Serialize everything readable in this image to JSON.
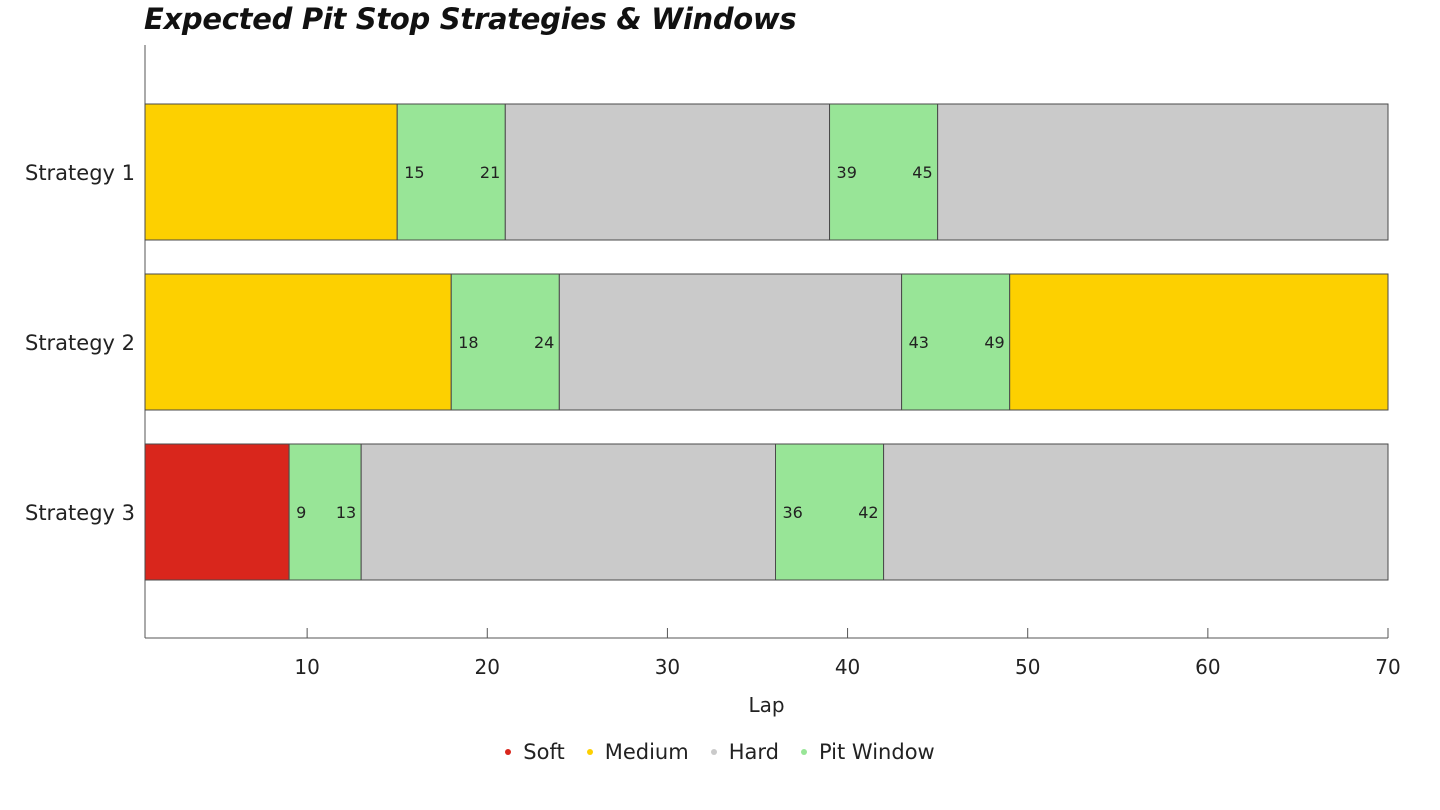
{
  "chart_data": {
    "type": "bar",
    "orientation": "horizontal-stacked",
    "title": "Expected Pit Stop Strategies & Windows",
    "xlabel": "Lap",
    "ylabel": "",
    "xlim": [
      1,
      70
    ],
    "xticks": [
      10,
      20,
      30,
      40,
      50,
      60,
      70
    ],
    "categories": [
      "Strategy 1",
      "Strategy 2",
      "Strategy 3"
    ],
    "strategies": [
      {
        "name": "Strategy 1",
        "segments": [
          {
            "compound": "Medium",
            "start": 1,
            "end": 15
          },
          {
            "compound": "Pit Window",
            "start": 15,
            "end": 21
          },
          {
            "compound": "Hard",
            "start": 21,
            "end": 39
          },
          {
            "compound": "Pit Window",
            "start": 39,
            "end": 45
          },
          {
            "compound": "Hard",
            "start": 45,
            "end": 70
          }
        ]
      },
      {
        "name": "Strategy 2",
        "segments": [
          {
            "compound": "Medium",
            "start": 1,
            "end": 18
          },
          {
            "compound": "Pit Window",
            "start": 18,
            "end": 24
          },
          {
            "compound": "Hard",
            "start": 24,
            "end": 43
          },
          {
            "compound": "Pit Window",
            "start": 43,
            "end": 49
          },
          {
            "compound": "Medium",
            "start": 49,
            "end": 70
          }
        ]
      },
      {
        "name": "Strategy 3",
        "segments": [
          {
            "compound": "Soft",
            "start": 1,
            "end": 9
          },
          {
            "compound": "Pit Window",
            "start": 9,
            "end": 13
          },
          {
            "compound": "Hard",
            "start": 13,
            "end": 36
          },
          {
            "compound": "Pit Window",
            "start": 36,
            "end": 42
          },
          {
            "compound": "Hard",
            "start": 42,
            "end": 70
          }
        ]
      }
    ],
    "legend": [
      {
        "name": "Soft",
        "color": "#d9261c"
      },
      {
        "name": "Medium",
        "color": "#fdd000"
      },
      {
        "name": "Hard",
        "color": "#cacaca"
      },
      {
        "name": "Pit Window",
        "color": "#98e597"
      }
    ],
    "legend_position": "bottom-center",
    "grid": false
  }
}
